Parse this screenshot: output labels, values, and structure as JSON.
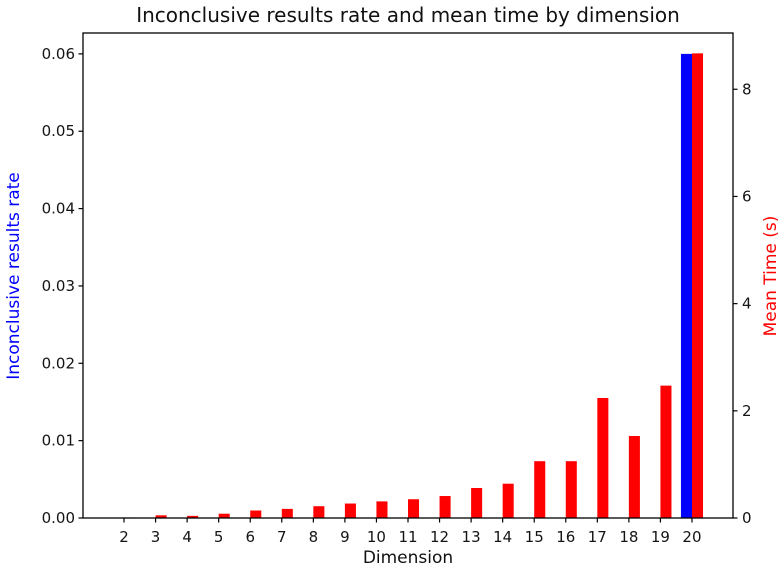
{
  "chart_data": {
    "type": "bar",
    "title": "Inconclusive results rate and mean time by dimension",
    "xlabel": "Dimension",
    "ylabel_left": "Inconclusive results rate",
    "ylabel_right": "Mean Time (s)",
    "background_color": "#ffffff",
    "grid": false,
    "legend": "none",
    "bar_width_units": 0.35,
    "categories": [
      2,
      3,
      4,
      5,
      6,
      7,
      8,
      9,
      10,
      11,
      12,
      13,
      14,
      15,
      16,
      17,
      18,
      19,
      20
    ],
    "series": [
      {
        "name": "Inconclusive results rate",
        "axis": "left",
        "color": "#0000ff",
        "values": [
          0,
          0,
          0,
          0,
          0,
          0,
          0,
          0,
          0,
          0,
          0,
          0,
          0,
          0,
          0,
          0,
          0,
          0,
          0.06
        ]
      },
      {
        "name": "Mean Time (s)",
        "axis": "right",
        "color": "#ff0000",
        "values": [
          0.01,
          0.05,
          0.04,
          0.08,
          0.14,
          0.17,
          0.22,
          0.27,
          0.31,
          0.35,
          0.41,
          0.56,
          0.64,
          1.06,
          1.06,
          2.24,
          1.53,
          2.47,
          8.67
        ]
      }
    ],
    "axes": {
      "x": {
        "lim": [
          0.7,
          21.3
        ],
        "ticks": [
          {
            "v": 2,
            "label": "2"
          },
          {
            "v": 3,
            "label": "3"
          },
          {
            "v": 4,
            "label": "4"
          },
          {
            "v": 5,
            "label": "5"
          },
          {
            "v": 6,
            "label": "6"
          },
          {
            "v": 7,
            "label": "7"
          },
          {
            "v": 8,
            "label": "8"
          },
          {
            "v": 9,
            "label": "9"
          },
          {
            "v": 10,
            "label": "10"
          },
          {
            "v": 11,
            "label": "11"
          },
          {
            "v": 12,
            "label": "12"
          },
          {
            "v": 13,
            "label": "13"
          },
          {
            "v": 14,
            "label": "14"
          },
          {
            "v": 15,
            "label": "15"
          },
          {
            "v": 16,
            "label": "16"
          },
          {
            "v": 17,
            "label": "17"
          },
          {
            "v": 18,
            "label": "18"
          },
          {
            "v": 19,
            "label": "19"
          },
          {
            "v": 20,
            "label": "20"
          }
        ]
      },
      "left": {
        "lim": [
          0,
          0.0627
        ],
        "ticks": [
          {
            "v": 0.0,
            "label": "0.00"
          },
          {
            "v": 0.01,
            "label": "0.01"
          },
          {
            "v": 0.02,
            "label": "0.02"
          },
          {
            "v": 0.03,
            "label": "0.03"
          },
          {
            "v": 0.04,
            "label": "0.04"
          },
          {
            "v": 0.05,
            "label": "0.05"
          },
          {
            "v": 0.06,
            "label": "0.06"
          }
        ]
      },
      "right": {
        "lim": [
          0,
          9.05
        ],
        "ticks": [
          {
            "v": 0,
            "label": "0"
          },
          {
            "v": 2,
            "label": "2"
          },
          {
            "v": 4,
            "label": "4"
          },
          {
            "v": 6,
            "label": "6"
          },
          {
            "v": 8,
            "label": "8"
          }
        ]
      }
    }
  }
}
